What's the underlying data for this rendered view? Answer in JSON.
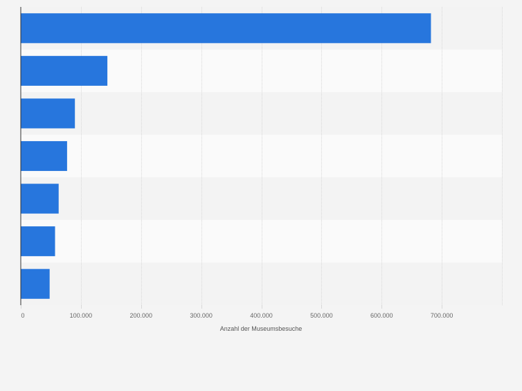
{
  "chart_data": {
    "type": "bar",
    "orientation": "horizontal",
    "title": "",
    "xlabel": "Anzahl der Museumsbesuche",
    "ylabel": "",
    "categories": [
      "",
      "",
      "",
      "",
      "",
      "",
      ""
    ],
    "values": [
      682000,
      144000,
      90000,
      77000,
      63000,
      57000,
      48000
    ],
    "xlim": [
      0,
      800000
    ],
    "xticks": [
      0,
      100000,
      200000,
      300000,
      400000,
      500000,
      600000,
      700000
    ],
    "xtick_labels": [
      "0",
      "100.000",
      "200.000",
      "300.000",
      "400.000",
      "500.000",
      "600.000",
      "700.000"
    ],
    "grid": true,
    "legend": "none",
    "colors": {
      "bar": "#2776dd",
      "background": "#f4f4f4",
      "band_light": "#fafafa",
      "band_dark": "#f3f3f3",
      "grid": "#d8d8d8",
      "axis": "#333333"
    }
  }
}
